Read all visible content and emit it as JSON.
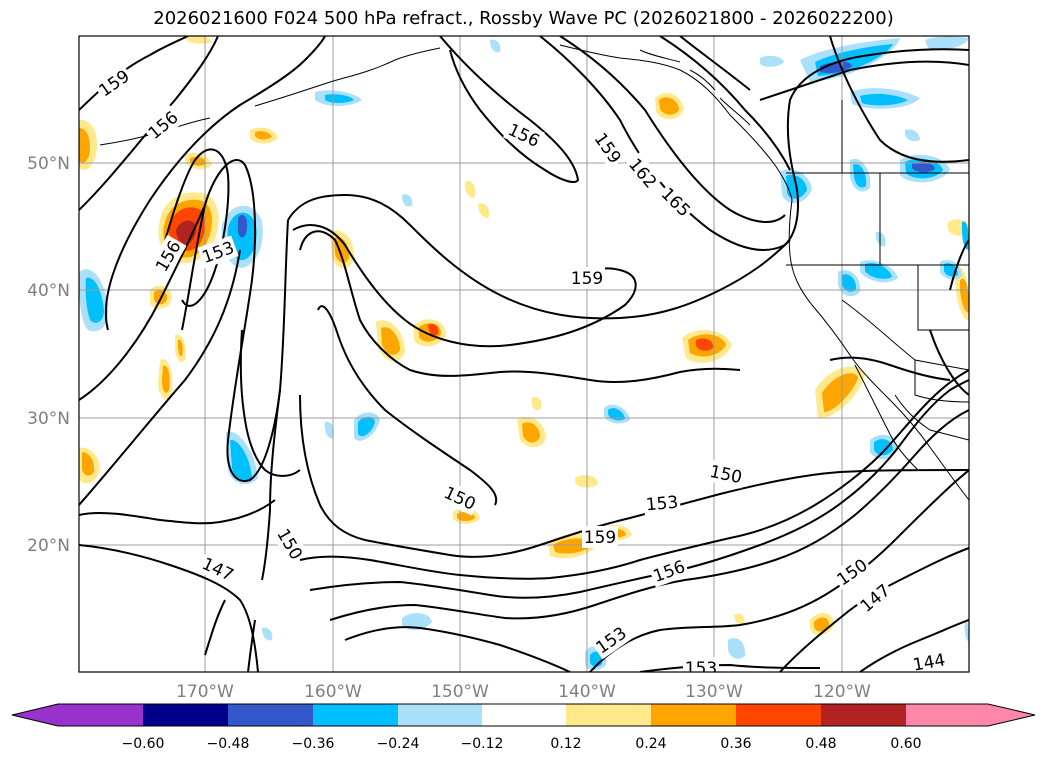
{
  "title": "2026021600 F024 500 hPa refract., Rossby Wave PC (2026021800 - 2026022200)",
  "map": {
    "projection": "lat-lon",
    "lon_range": [
      -180,
      -110
    ],
    "lat_range": [
      10,
      60
    ],
    "lat_labels": [
      "20°N",
      "30°N",
      "40°N",
      "50°N"
    ],
    "lon_labels": [
      "170°W",
      "160°W",
      "150°W",
      "140°W",
      "130°W",
      "120°W"
    ],
    "gridlines": true,
    "contour_labels": [
      "159",
      "156",
      "156",
      "153",
      "156",
      "159",
      "162",
      "165",
      "159",
      "150",
      "150",
      "153",
      "159",
      "156",
      "153",
      "153",
      "150",
      "147",
      "150",
      "147",
      "144"
    ]
  },
  "colorbar": {
    "ticks": [
      "−0.60",
      "−0.48",
      "−0.36",
      "−0.24",
      "−0.12",
      "0.12",
      "0.24",
      "0.36",
      "0.48",
      "0.60"
    ],
    "colors": [
      "#9932cc",
      "#00008b",
      "#3358cc",
      "#00bfff",
      "#aae0fa",
      "#ffffff",
      "#ffe98a",
      "#ffa500",
      "#ff4500",
      "#b22222",
      "#ff88aa"
    ],
    "extend": "both"
  }
}
